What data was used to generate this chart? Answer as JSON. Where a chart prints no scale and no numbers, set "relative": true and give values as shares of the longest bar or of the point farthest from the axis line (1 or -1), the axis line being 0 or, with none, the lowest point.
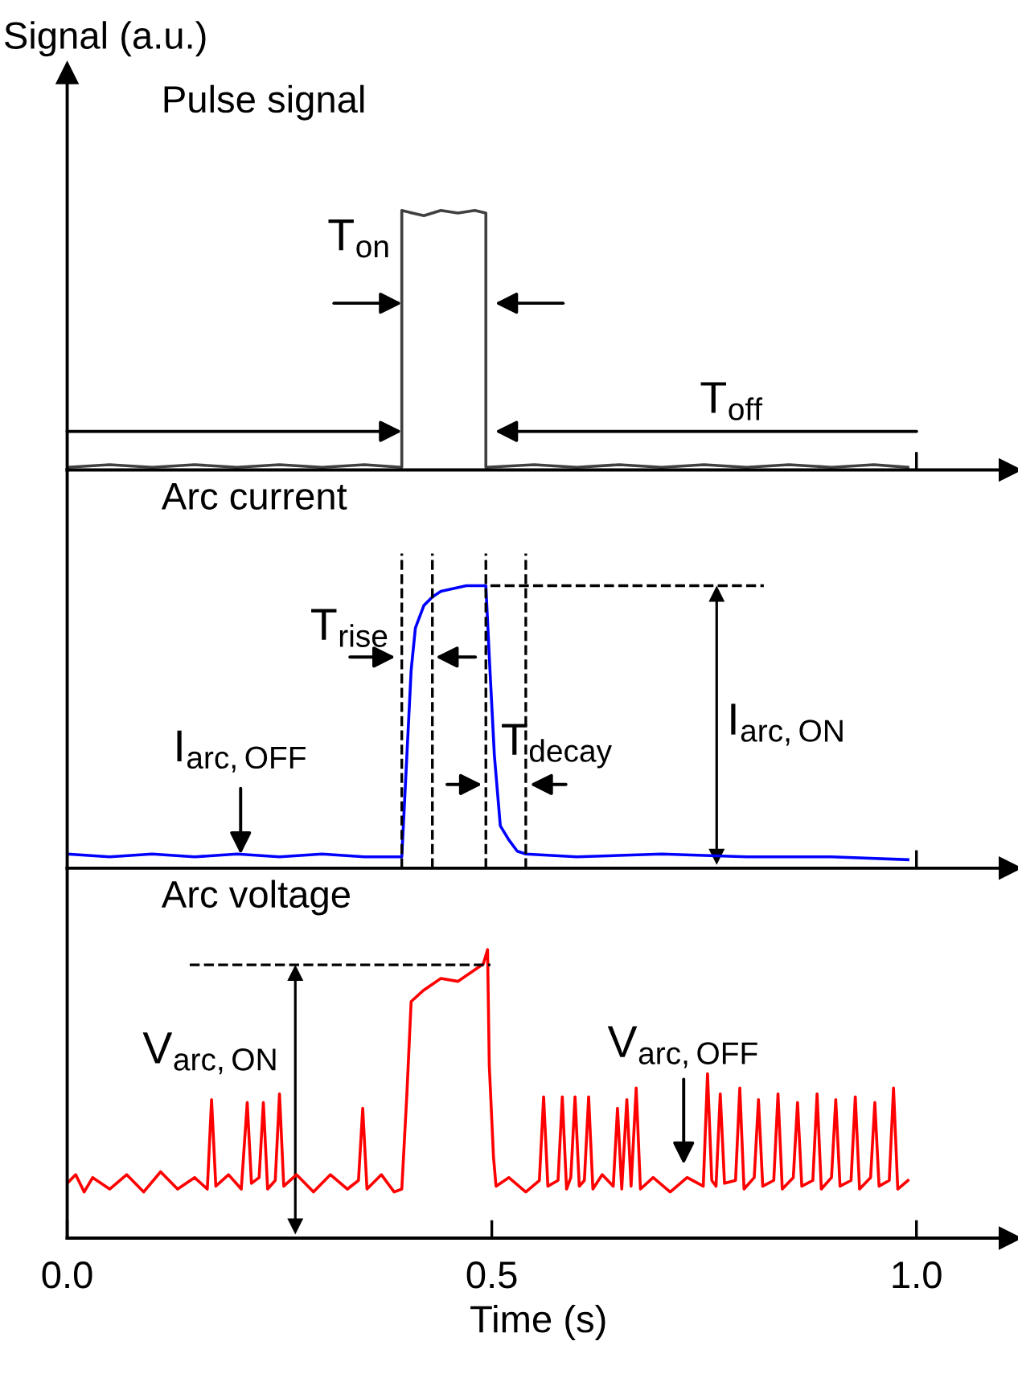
{
  "chart_data": [
    {
      "type": "line",
      "title": "Pulse signal",
      "ylabel": "Signal (a.u.)",
      "relative": true,
      "xlim": [
        0,
        1.11
      ],
      "xticks": [
        {
          "value": 1.0,
          "label": null
        }
      ],
      "tick_labels": false,
      "grid": false,
      "legend": false,
      "marker": "none",
      "line_style": "solid",
      "series": [
        {
          "color": "#404040",
          "x": [
            0.0,
            0.05,
            0.1,
            0.15,
            0.2,
            0.25,
            0.3,
            0.35,
            0.394,
            0.394,
            0.42,
            0.44,
            0.46,
            0.48,
            0.493,
            0.493,
            0.55,
            0.6,
            0.65,
            0.7,
            0.75,
            0.8,
            0.85,
            0.9,
            0.95,
            0.99
          ],
          "values": [
            0.01,
            0.02,
            0.01,
            0.02,
            0.01,
            0.02,
            0.01,
            0.02,
            0.01,
            1.0,
            0.98,
            1.0,
            0.99,
            1.0,
            0.99,
            0.01,
            0.02,
            0.01,
            0.02,
            0.01,
            0.02,
            0.01,
            0.02,
            0.01,
            0.02,
            0.01
          ]
        }
      ],
      "annotations": [
        "T$_{on}$",
        "T$_{off}$"
      ]
    },
    {
      "type": "line",
      "title": "Arc current",
      "relative": true,
      "xlim": [
        0,
        1.11
      ],
      "xticks": [
        {
          "value": 1.0,
          "label": null
        }
      ],
      "tick_labels": false,
      "grid": false,
      "legend": false,
      "marker": "none",
      "line_style": "solid",
      "series": [
        {
          "color": "#0000ff",
          "x": [
            0.0,
            0.05,
            0.1,
            0.15,
            0.2,
            0.25,
            0.3,
            0.35,
            0.394,
            0.4,
            0.405,
            0.41,
            0.42,
            0.43,
            0.44,
            0.47,
            0.493,
            0.497,
            0.503,
            0.51,
            0.52,
            0.53,
            0.54,
            0.6,
            0.7,
            0.8,
            0.9,
            0.99
          ],
          "values": [
            0.05,
            0.04,
            0.05,
            0.04,
            0.05,
            0.04,
            0.05,
            0.04,
            0.04,
            0.4,
            0.7,
            0.85,
            0.93,
            0.96,
            0.98,
            1.0,
            1.0,
            0.75,
            0.4,
            0.15,
            0.1,
            0.06,
            0.05,
            0.04,
            0.05,
            0.04,
            0.04,
            0.03
          ]
        }
      ],
      "ref_lines": [
        {
          "axis": "x",
          "value": 0.394,
          "color": "#000000",
          "line_style": "dashed"
        },
        {
          "axis": "x",
          "value": 0.43,
          "color": "#000000",
          "line_style": "dashed"
        },
        {
          "axis": "x",
          "value": 0.493,
          "color": "#000000",
          "line_style": "dashed"
        },
        {
          "axis": "x",
          "value": 0.54,
          "color": "#000000",
          "line_style": "dashed"
        },
        {
          "axis": "y",
          "value": 1.0,
          "color": "#000000",
          "line_style": "dashed"
        }
      ],
      "annotations": [
        "T$_{rise}$",
        "T$_{decay}$",
        "I$_{arc,OFF}$",
        "I$_{arc,ON}$"
      ]
    },
    {
      "type": "line",
      "title": "Arc voltage",
      "xlabel": "Time (s)",
      "relative": true,
      "xlim": [
        0,
        1.11
      ],
      "xticks": [
        {
          "value": 0.0,
          "label": "0.0"
        },
        {
          "value": 0.5,
          "label": "0.5"
        },
        {
          "value": 1.0,
          "label": "1.0"
        }
      ],
      "tick_labels": "x",
      "grid": false,
      "legend": false,
      "marker": "none",
      "line_style": "solid",
      "series": [
        {
          "color": "#ff0000",
          "x": [
            0.0,
            0.01,
            0.02,
            0.03,
            0.05,
            0.07,
            0.09,
            0.11,
            0.13,
            0.15,
            0.165,
            0.17,
            0.175,
            0.19,
            0.205,
            0.212,
            0.217,
            0.226,
            0.231,
            0.236,
            0.245,
            0.25,
            0.255,
            0.27,
            0.29,
            0.31,
            0.33,
            0.343,
            0.348,
            0.353,
            0.37,
            0.385,
            0.394,
            0.4,
            0.405,
            0.42,
            0.44,
            0.46,
            0.48,
            0.49,
            0.495,
            0.497,
            0.502,
            0.505,
            0.52,
            0.54,
            0.556,
            0.561,
            0.566,
            0.578,
            0.583,
            0.588,
            0.593,
            0.598,
            0.603,
            0.609,
            0.614,
            0.619,
            0.63,
            0.643,
            0.648,
            0.653,
            0.659,
            0.664,
            0.67,
            0.675,
            0.69,
            0.71,
            0.73,
            0.749,
            0.754,
            0.759,
            0.764,
            0.769,
            0.774,
            0.787,
            0.792,
            0.797,
            0.809,
            0.814,
            0.819,
            0.832,
            0.837,
            0.842,
            0.855,
            0.86,
            0.865,
            0.878,
            0.883,
            0.888,
            0.9,
            0.905,
            0.91,
            0.923,
            0.928,
            0.933,
            0.946,
            0.951,
            0.956,
            0.968,
            0.973,
            0.978,
            0.99
          ],
          "values": [
            0.19,
            0.22,
            0.16,
            0.21,
            0.17,
            0.22,
            0.16,
            0.23,
            0.17,
            0.21,
            0.17,
            0.48,
            0.18,
            0.22,
            0.17,
            0.47,
            0.19,
            0.21,
            0.47,
            0.17,
            0.2,
            0.5,
            0.18,
            0.22,
            0.16,
            0.22,
            0.17,
            0.2,
            0.45,
            0.17,
            0.22,
            0.16,
            0.17,
            0.5,
            0.82,
            0.86,
            0.9,
            0.89,
            0.93,
            0.95,
            1.0,
            0.6,
            0.28,
            0.18,
            0.21,
            0.16,
            0.2,
            0.49,
            0.18,
            0.2,
            0.49,
            0.17,
            0.21,
            0.49,
            0.18,
            0.2,
            0.49,
            0.17,
            0.22,
            0.18,
            0.45,
            0.17,
            0.48,
            0.18,
            0.52,
            0.17,
            0.21,
            0.16,
            0.21,
            0.18,
            0.57,
            0.2,
            0.18,
            0.5,
            0.19,
            0.2,
            0.52,
            0.17,
            0.21,
            0.48,
            0.18,
            0.2,
            0.5,
            0.17,
            0.21,
            0.47,
            0.18,
            0.2,
            0.5,
            0.17,
            0.21,
            0.48,
            0.18,
            0.2,
            0.49,
            0.17,
            0.21,
            0.47,
            0.18,
            0.2,
            0.52,
            0.17,
            0.2
          ]
        }
      ],
      "annotations": [
        "V$_{arc,ON}$",
        "V$_{arc,OFF}$"
      ]
    }
  ]
}
